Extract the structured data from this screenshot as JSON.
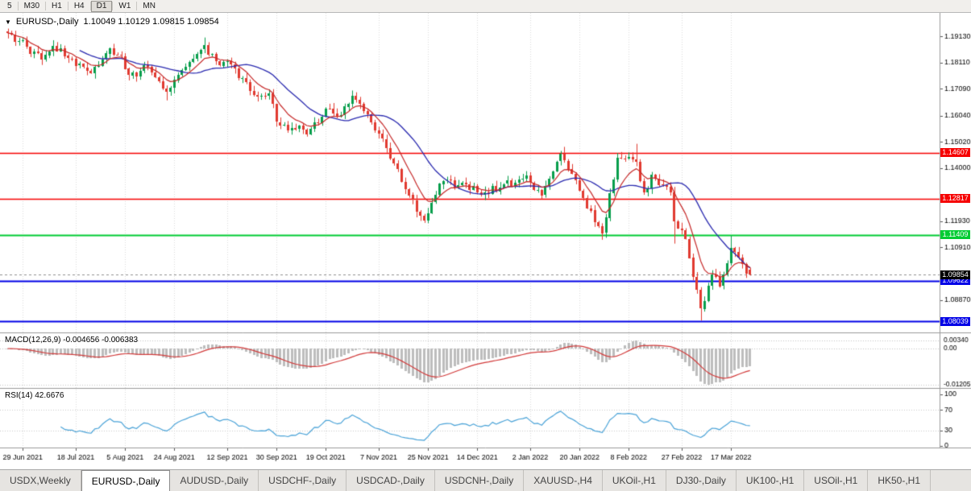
{
  "toolbar": {
    "timeframes": [
      {
        "label": "5",
        "active": false
      },
      {
        "label": "M30",
        "active": false
      },
      {
        "label": "H1",
        "active": false
      },
      {
        "label": "H4",
        "active": false
      },
      {
        "label": "D1",
        "active": true
      },
      {
        "label": "W1",
        "active": false
      },
      {
        "label": "MN",
        "active": false
      }
    ]
  },
  "chart": {
    "symbol": "EURUSD-,Daily",
    "ohlc": "1.10049 1.10129 1.09815 1.09854",
    "price_axis_labels": [
      "1.19130",
      "1.18110",
      "1.17090",
      "1.16040",
      "1.15020",
      "1.14000",
      "1.11930",
      "1.10910",
      "1.08870"
    ],
    "hlines": [
      {
        "price": 1.14607,
        "label": "1.14607",
        "color": "#f60000",
        "width": 1.4
      },
      {
        "price": 1.12817,
        "label": "1.12817",
        "color": "#f60000",
        "width": 1.4
      },
      {
        "price": 1.11409,
        "label": "1.11409",
        "color": "#00cc33",
        "width": 2.2
      },
      {
        "price": 1.09622,
        "label": "1.09622",
        "color": "#0000e6",
        "width": 2.2
      },
      {
        "price": 1.08039,
        "label": "1.08039",
        "color": "#0000e6",
        "width": 2.2
      }
    ],
    "current_price": {
      "price": 1.09854,
      "label": "1.09854",
      "color": "#000000"
    }
  },
  "macd": {
    "label": "MACD(12,26,9) -0.004656 -0.006383",
    "axis_max": "0.00340",
    "axis_zero": "0.00",
    "axis_min": "-0.01205"
  },
  "rsi": {
    "label": "RSI(14) 42.6676",
    "axis": [
      "100",
      "70",
      "30",
      "0"
    ],
    "axis_values": [
      100,
      70,
      30,
      0
    ],
    "levels": [
      70,
      30
    ]
  },
  "dates": [
    "29 Jun 2021",
    "18 Jul 2021",
    "5 Aug 2021",
    "24 Aug 2021",
    "12 Sep 2021",
    "30 Sep 2021",
    "19 Oct 2021",
    "7 Nov 2021",
    "25 Nov 2021",
    "14 Dec 2021",
    "2 Jan 2022",
    "20 Jan 2022",
    "8 Feb 2022",
    "27 Feb 2022",
    "17 Mar 2022"
  ],
  "tabs": [
    {
      "label": "USDX,Weekly",
      "active": false
    },
    {
      "label": "EURUSD-,Daily",
      "active": true
    },
    {
      "label": "AUDUSD-,Daily",
      "active": false
    },
    {
      "label": "USDCHF-,Daily",
      "active": false
    },
    {
      "label": "USDCAD-,Daily",
      "active": false
    },
    {
      "label": "USDCNH-,Daily",
      "active": false
    },
    {
      "label": "XAUUSD-,H4",
      "active": false
    },
    {
      "label": "UKOil-,H1",
      "active": false
    },
    {
      "label": "DJ30-,Daily",
      "active": false
    },
    {
      "label": "UK100-,H1",
      "active": false
    },
    {
      "label": "USOil-,H1",
      "active": false
    },
    {
      "label": "HK50-,H1",
      "active": false
    }
  ],
  "chart_data": {
    "type": "candlestick",
    "symbol": "EURUSD",
    "timeframe": "Daily",
    "current_ohlc": {
      "open": 1.10049,
      "high": 1.10129,
      "low": 1.09815,
      "close": 1.09854
    },
    "y_range": {
      "max": 1.2005,
      "min": 1.076
    },
    "candle_count": 197,
    "tick_indices": [
      4,
      18,
      31,
      44,
      58,
      71,
      84,
      98,
      111,
      124,
      138,
      151,
      164,
      178,
      191
    ],
    "close_path": [
      [
        0,
        1.1926
      ],
      [
        4,
        1.1898
      ],
      [
        6,
        1.1845
      ],
      [
        9,
        1.1823
      ],
      [
        12,
        1.1877
      ],
      [
        15,
        1.1838
      ],
      [
        18,
        1.1799
      ],
      [
        22,
        1.177
      ],
      [
        27,
        1.1868
      ],
      [
        30,
        1.1837
      ],
      [
        32,
        1.1762
      ],
      [
        37,
        1.1795
      ],
      [
        42,
        1.1697
      ],
      [
        47,
        1.1795
      ],
      [
        52,
        1.1878
      ],
      [
        55,
        1.1817
      ],
      [
        59,
        1.1805
      ],
      [
        65,
        1.1686
      ],
      [
        69,
        1.169
      ],
      [
        71,
        1.158
      ],
      [
        75,
        1.1557
      ],
      [
        79,
        1.1532
      ],
      [
        84,
        1.1633
      ],
      [
        88,
        1.1606
      ],
      [
        91,
        1.1682
      ],
      [
        95,
        1.161
      ],
      [
        100,
        1.1478
      ],
      [
        105,
        1.1319
      ],
      [
        110,
        1.1198
      ],
      [
        114,
        1.1339
      ],
      [
        120,
        1.1343
      ],
      [
        125,
        1.1296
      ],
      [
        130,
        1.1324
      ],
      [
        137,
        1.137
      ],
      [
        141,
        1.1296
      ],
      [
        146,
        1.1455
      ],
      [
        151,
        1.1313
      ],
      [
        157,
        1.1148
      ],
      [
        161,
        1.1441
      ],
      [
        166,
        1.1426
      ],
      [
        168,
        1.1306
      ],
      [
        170,
        1.1375
      ],
      [
        175,
        1.1307
      ],
      [
        176,
        1.1193
      ],
      [
        179,
        1.1125
      ],
      [
        182,
        1.0926
      ],
      [
        183,
        1.0854
      ],
      [
        186,
        1.0986
      ],
      [
        188,
        1.0941
      ],
      [
        191,
        1.109
      ],
      [
        194,
        1.1028
      ],
      [
        196,
        1.09854
      ]
    ],
    "wick_overrides": [
      {
        "i": 0,
        "high": 1.1934
      },
      {
        "i": 42,
        "low": 1.1664
      },
      {
        "i": 52,
        "high": 1.1909
      },
      {
        "i": 147,
        "high": 1.1483
      },
      {
        "i": 157,
        "low": 1.1121
      },
      {
        "i": 166,
        "high": 1.1495
      },
      {
        "i": 176,
        "low": 1.1106
      },
      {
        "i": 183,
        "low": 1.0806
      },
      {
        "i": 191,
        "high": 1.1137
      }
    ],
    "indicators": {
      "ma_fast_period": 8,
      "ma_slow_period": 20,
      "macd": [
        12,
        26,
        9
      ],
      "rsi_period": 14
    },
    "colors": {
      "up": "#089e4c",
      "down": "#e13a30",
      "ma_fast": "#c62828",
      "ma_slow": "#2b2bb0",
      "macd_hist": "#bdbdbd",
      "macd_signal": "#d23a3a",
      "rsi_line": "#4aa3d8",
      "grid": "#dadada"
    }
  }
}
